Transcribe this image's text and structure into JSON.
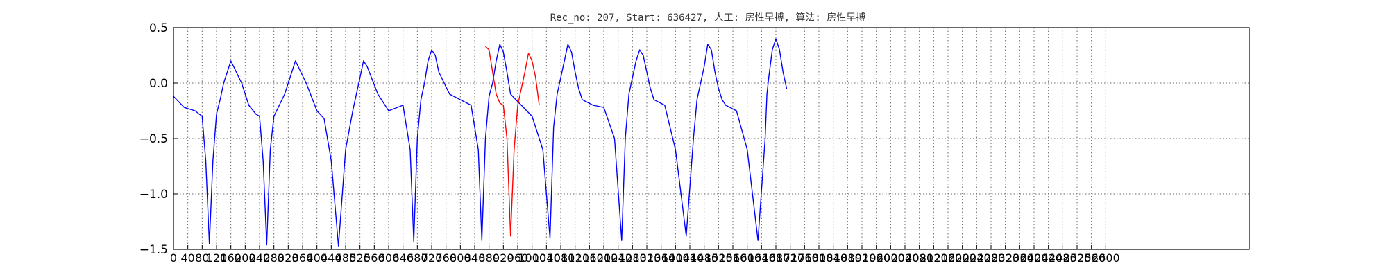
{
  "chart_data": {
    "type": "line",
    "title": "Rec_no: 207, Start: 636427, 人工: 房性早搏, 算法: 房性早搏",
    "xlabel": "",
    "ylabel": "",
    "xlim": [
      0,
      3000
    ],
    "ylim": [
      -1.5,
      0.5
    ],
    "grid": true,
    "y_ticks": [
      "0.5",
      "0.0",
      "−0.5",
      "−1.0",
      "−1.5"
    ],
    "x_ticks": [
      "0",
      "40",
      "80",
      "120",
      "160",
      "200",
      "240",
      "280",
      "320",
      "360",
      "400",
      "440",
      "480",
      "520",
      "560",
      "600",
      "640",
      "680",
      "720",
      "760",
      "800",
      "840",
      "880",
      "920",
      "960",
      "1000",
      "1040",
      "1080",
      "1120",
      "1160",
      "1200",
      "1240",
      "1280",
      "1320",
      "1360",
      "1400",
      "1440",
      "1480",
      "1520",
      "1560",
      "1600",
      "1640",
      "1680",
      "1720",
      "1760",
      "1800",
      "1840",
      "1880",
      "1920",
      "1960",
      "2000",
      "2040",
      "2080",
      "2120",
      "2160",
      "2200",
      "2240",
      "2280",
      "2320",
      "2360",
      "2400",
      "2440",
      "2480",
      "2520",
      "2560",
      "2600"
    ],
    "series": [
      {
        "color": "#0000ff",
        "x": [
          0,
          30,
          60,
          80,
          90,
          100,
          110,
          120,
          130,
          140,
          160,
          190,
          210,
          230,
          240,
          250,
          260,
          270,
          280,
          310,
          340,
          370,
          400,
          420,
          440,
          460,
          480,
          500,
          510,
          520,
          530,
          540,
          570,
          600,
          640,
          660,
          670,
          680,
          690,
          700,
          710,
          720,
          730,
          740,
          770,
          800,
          830,
          850,
          860,
          870,
          880,
          890,
          900,
          910,
          920,
          930,
          940,
          970,
          1000,
          1030,
          1050,
          1060,
          1070,
          1080,
          1090,
          1100,
          1110,
          1120,
          1130,
          1140,
          1170,
          1200,
          1230,
          1250,
          1260,
          1270,
          1280,
          1290,
          1300,
          1310,
          1320,
          1330,
          1340,
          1370,
          1400,
          1430,
          1450,
          1460,
          1470,
          1480,
          1490,
          1500,
          1510,
          1520,
          1530,
          1540,
          1570,
          1600,
          1630,
          1650,
          1655,
          1660,
          1670,
          1680,
          1690,
          1700,
          1710
        ],
        "y": [
          -0.12,
          -0.22,
          -0.25,
          -0.3,
          -0.7,
          -1.45,
          -0.7,
          -0.28,
          -0.15,
          0.0,
          0.2,
          0.0,
          -0.2,
          -0.28,
          -0.3,
          -0.7,
          -1.46,
          -0.6,
          -0.3,
          -0.1,
          0.2,
          0.0,
          -0.25,
          -0.32,
          -0.7,
          -1.47,
          -0.6,
          -0.25,
          -0.1,
          0.05,
          0.2,
          0.15,
          -0.1,
          -0.25,
          -0.2,
          -0.6,
          -1.43,
          -0.5,
          -0.15,
          0.0,
          0.2,
          0.3,
          0.25,
          0.1,
          -0.1,
          -0.15,
          -0.2,
          -0.6,
          -1.42,
          -0.5,
          -0.12,
          0.0,
          0.2,
          0.35,
          0.28,
          0.1,
          -0.1,
          -0.2,
          -0.3,
          -0.6,
          -1.4,
          -0.4,
          -0.1,
          0.05,
          0.2,
          0.35,
          0.28,
          0.1,
          -0.05,
          -0.15,
          -0.2,
          -0.22,
          -0.5,
          -1.42,
          -0.5,
          -0.1,
          0.05,
          0.2,
          0.3,
          0.25,
          0.1,
          -0.05,
          -0.15,
          -0.2,
          -0.6,
          -1.38,
          -0.5,
          -0.15,
          0.0,
          0.15,
          0.35,
          0.3,
          0.1,
          -0.05,
          -0.15,
          -0.2,
          -0.25,
          -0.6,
          -1.42,
          -0.5,
          -0.1,
          0.05,
          0.3,
          0.4,
          0.3,
          0.1,
          -0.05
        ]
      },
      {
        "color": "#ff0000",
        "x": [
          870,
          880,
          890,
          900,
          910,
          920,
          930,
          940,
          950,
          960,
          970,
          980,
          990,
          1000,
          1010,
          1020
        ],
        "y": [
          0.33,
          0.3,
          0.1,
          -0.1,
          -0.18,
          -0.2,
          -0.5,
          -1.38,
          -0.6,
          -0.2,
          -0.05,
          0.1,
          0.27,
          0.2,
          0.05,
          -0.2
        ]
      }
    ]
  }
}
